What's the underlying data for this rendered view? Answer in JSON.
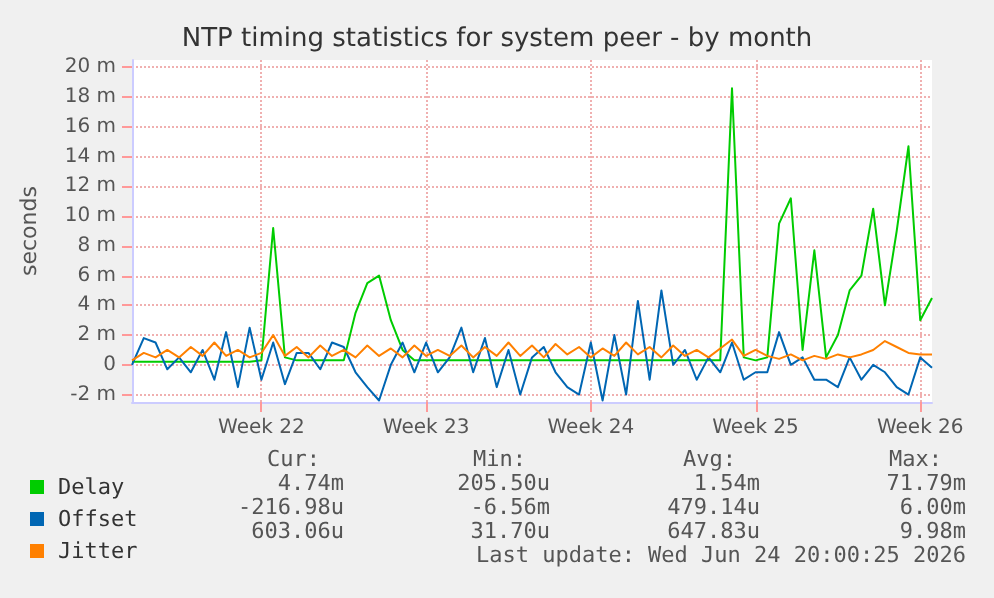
{
  "chart_data": {
    "type": "line",
    "title": "NTP timing statistics for system peer - by month",
    "ylabel": "seconds",
    "categories": [
      null,
      null,
      null,
      null,
      null,
      null,
      null,
      null,
      null,
      null,
      null,
      "Week 22",
      null,
      null,
      null,
      null,
      null,
      null,
      null,
      null,
      null,
      null,
      null,
      null,
      null,
      "Week 23",
      null,
      null,
      null,
      null,
      null,
      null,
      null,
      null,
      null,
      null,
      null,
      null,
      null,
      "Week 24",
      null,
      null,
      null,
      null,
      null,
      null,
      null,
      null,
      null,
      null,
      null,
      null,
      null,
      "Week 25",
      null,
      null,
      null,
      null,
      null,
      null,
      null,
      null,
      null,
      null,
      null,
      null,
      null,
      "Week 26",
      null
    ],
    "ylim": [
      -2.5,
      20.5
    ],
    "yticks": [
      {
        "value": -2,
        "label": "-2 m"
      },
      {
        "value": 0,
        "label": "0"
      },
      {
        "value": 2,
        "label": "2 m"
      },
      {
        "value": 4,
        "label": "4 m"
      },
      {
        "value": 6,
        "label": "6 m"
      },
      {
        "value": 8,
        "label": "8 m"
      },
      {
        "value": 10,
        "label": "10 m"
      },
      {
        "value": 12,
        "label": "12 m"
      },
      {
        "value": 14,
        "label": "14 m"
      },
      {
        "value": 16,
        "label": "16 m"
      },
      {
        "value": 18,
        "label": "18 m"
      },
      {
        "value": 20,
        "label": "20 m"
      }
    ],
    "grid": true,
    "legend": "bottom left",
    "marker": "none",
    "line_style": "solid",
    "series": [
      {
        "name": "Delay",
        "color": "#00cc00",
        "values": [
          0.2,
          0.2,
          0.2,
          0.2,
          0.2,
          0.2,
          0.2,
          0.2,
          0.2,
          0.2,
          0.2,
          0.3,
          9.2,
          0.5,
          0.3,
          0.3,
          0.3,
          0.3,
          0.3,
          3.5,
          5.5,
          6.0,
          3.0,
          1.0,
          0.3,
          0.3,
          0.3,
          0.3,
          0.3,
          0.3,
          0.3,
          0.3,
          0.3,
          0.3,
          0.3,
          0.3,
          0.3,
          0.3,
          0.3,
          0.3,
          0.3,
          0.3,
          0.3,
          0.3,
          0.3,
          0.3,
          0.3,
          0.3,
          0.3,
          0.3,
          0.3,
          18.6,
          0.5,
          0.3,
          0.5,
          9.5,
          11.2,
          1.0,
          7.7,
          0.5,
          2.0,
          5.0,
          6.0,
          10.5,
          4.0,
          9.0,
          14.7,
          3.0,
          4.5
        ]
      },
      {
        "name": "Offset",
        "color": "#0066b3",
        "values": [
          0,
          1.8,
          1.5,
          -0.3,
          0.5,
          -0.5,
          1.0,
          -1.0,
          2.2,
          -1.5,
          2.5,
          -1.0,
          1.5,
          -1.3,
          0.8,
          0.8,
          -0.3,
          1.5,
          1.2,
          -0.5,
          -1.5,
          -2.4,
          0.0,
          1.5,
          -0.5,
          1.5,
          -0.5,
          0.5,
          2.5,
          -0.5,
          1.8,
          -1.5,
          1.0,
          -2.0,
          0.5,
          1.2,
          -0.5,
          -1.5,
          -2.0,
          1.5,
          -2.4,
          2.0,
          -2.0,
          4.3,
          -1.0,
          5.0,
          0.0,
          1.0,
          -1.0,
          0.5,
          -0.5,
          1.5,
          -1.0,
          -0.5,
          -0.5,
          2.2,
          0.0,
          0.5,
          -1.0,
          -1.0,
          -1.5,
          0.5,
          -1.0,
          0.0,
          -0.5,
          -1.5,
          -2.0,
          0.5,
          -0.2
        ]
      },
      {
        "name": "Jitter",
        "color": "#ff8000",
        "values": [
          0.3,
          0.8,
          0.5,
          1.0,
          0.5,
          1.2,
          0.6,
          1.5,
          0.6,
          1.0,
          0.5,
          0.8,
          2.0,
          0.6,
          1.2,
          0.5,
          1.3,
          0.6,
          1.0,
          0.5,
          1.3,
          0.6,
          1.1,
          0.5,
          1.3,
          0.6,
          1.0,
          0.6,
          1.3,
          0.5,
          1.2,
          0.6,
          1.5,
          0.6,
          1.3,
          0.5,
          1.4,
          0.7,
          1.2,
          0.5,
          1.1,
          0.6,
          1.5,
          0.7,
          1.2,
          0.5,
          1.3,
          0.6,
          1.0,
          0.5,
          1.1,
          1.7,
          0.6,
          1.0,
          0.6,
          0.4,
          0.7,
          0.3,
          0.6,
          0.4,
          0.7,
          0.5,
          0.7,
          1.0,
          1.6,
          1.2,
          0.8,
          0.7,
          0.7
        ]
      }
    ],
    "annotations": [
      "Cur:",
      "Min:",
      "Avg:",
      "Max:",
      "4.74m",
      "205.50u",
      "1.54m",
      "71.79m",
      "-216.98u",
      "-6.56m",
      "479.14u",
      "6.00m",
      "603.06u",
      "31.70u",
      "647.83u",
      "9.98m",
      "Last update: Wed Jun 24 20:00:25 2026"
    ]
  }
}
